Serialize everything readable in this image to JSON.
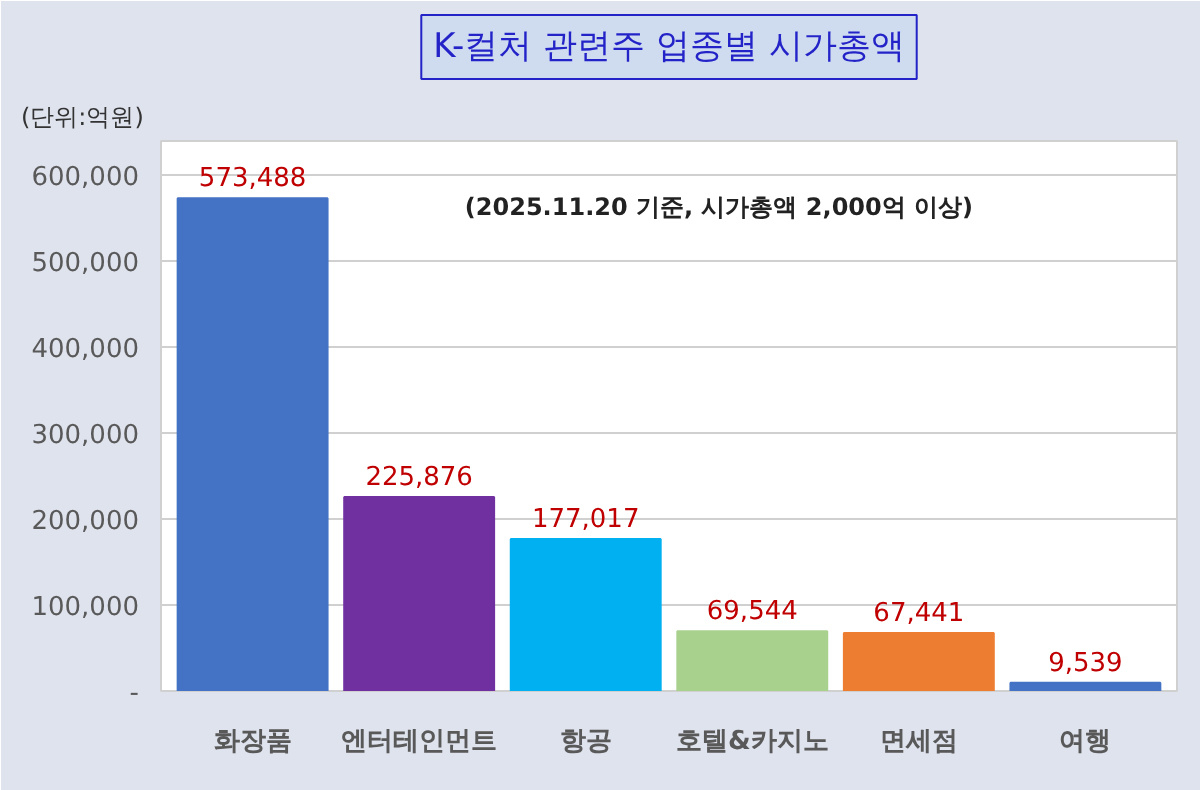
{
  "chart_data": {
    "type": "bar",
    "title": "K-컬처 관련주 업종별 시가총액",
    "annotations": [
      "(단위:억원)",
      "(2025.11.20 기준, 시가총액 2,000억 이상)"
    ],
    "categories": [
      "화장품",
      "엔터테인먼트",
      "항공",
      "호텔&카지노",
      "면세점",
      "여행"
    ],
    "values": [
      573488,
      225876,
      177017,
      69544,
      67441,
      9539
    ],
    "value_labels": [
      "573,488",
      "225,876",
      "177,017",
      "69,544",
      "67,441",
      "9,539"
    ],
    "colors": [
      "#4472c4",
      "#7030a0",
      "#00b0f0",
      "#a9d18e",
      "#ed7d31",
      "#4472c4"
    ],
    "ylim": [
      0,
      640000
    ],
    "yticks": [
      {
        "value": 0,
        "label": "-"
      },
      {
        "value": 100000,
        "label": "100,000"
      },
      {
        "value": 200000,
        "label": "200,000"
      },
      {
        "value": 300000,
        "label": "300,000"
      },
      {
        "value": 400000,
        "label": "400,000"
      },
      {
        "value": 500000,
        "label": "500,000"
      },
      {
        "value": 600000,
        "label": "600,000"
      }
    ],
    "grid": "y"
  }
}
